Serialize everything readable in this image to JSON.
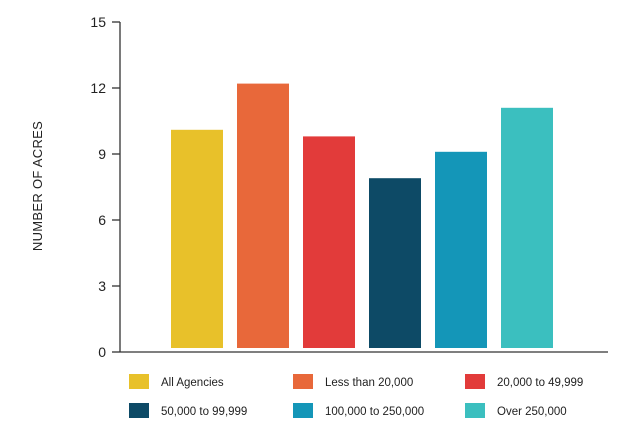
{
  "chart_data": {
    "type": "bar",
    "ylabel": "NUMBER OF ACRES",
    "xlabel": "",
    "ylim": [
      0,
      15
    ],
    "yticks": [
      0,
      3,
      6,
      9,
      12,
      15
    ],
    "grid": false,
    "legend_position": "bottom",
    "categories": [
      "All Agencies",
      "Less than 20,000",
      "20,000 to 49,999",
      "50,000 to 99,999",
      "100,000 to 250,000",
      "Over 250,000"
    ],
    "values": [
      10.1,
      12.2,
      9.8,
      7.9,
      9.1,
      11.1
    ],
    "colors": [
      "#e8c12a",
      "#e8683a",
      "#e23b3a",
      "#0d4a66",
      "#1496b8",
      "#3bbfbf"
    ]
  }
}
